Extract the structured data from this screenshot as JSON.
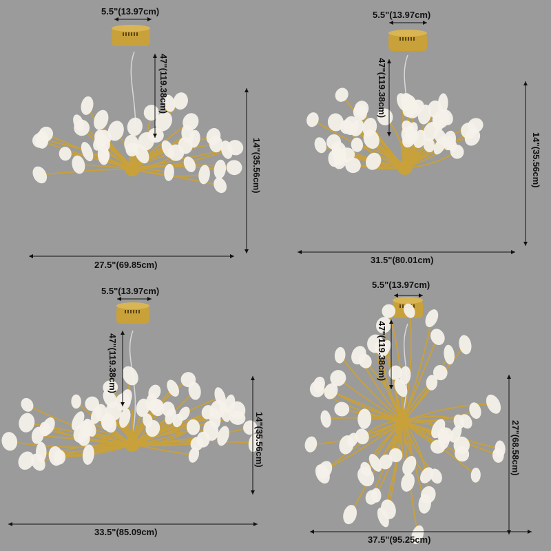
{
  "products": [
    {
      "canopy_width": "5.5\"(13.97cm)",
      "cord_length": "47\"(119.38cm)",
      "height": "14\"(35.56cm)",
      "width": "27.5\"(69.85cm)"
    },
    {
      "canopy_width": "5.5\"(13.97cm)",
      "cord_length": "47\"(119.38cm)",
      "height": "14\"(35.56cm)",
      "width": "31.5\"(80.01cm)"
    },
    {
      "canopy_width": "5.5\"(13.97cm)",
      "cord_length": "47\"(119.38cm)",
      "height": "14\"(35.56cm)",
      "width": "33.5\"(85.09cm)"
    },
    {
      "canopy_width": "5.5\"(13.97cm)",
      "cord_length": "47\"(119.38cm)",
      "height": "27\"(68.58cm)",
      "width": "37.5\"(95.25cm)"
    }
  ],
  "colors": {
    "background": "#9b9b9b",
    "gold": "#c9a13a",
    "shade": "#f4f1ea",
    "dimension_line": "#111111"
  }
}
